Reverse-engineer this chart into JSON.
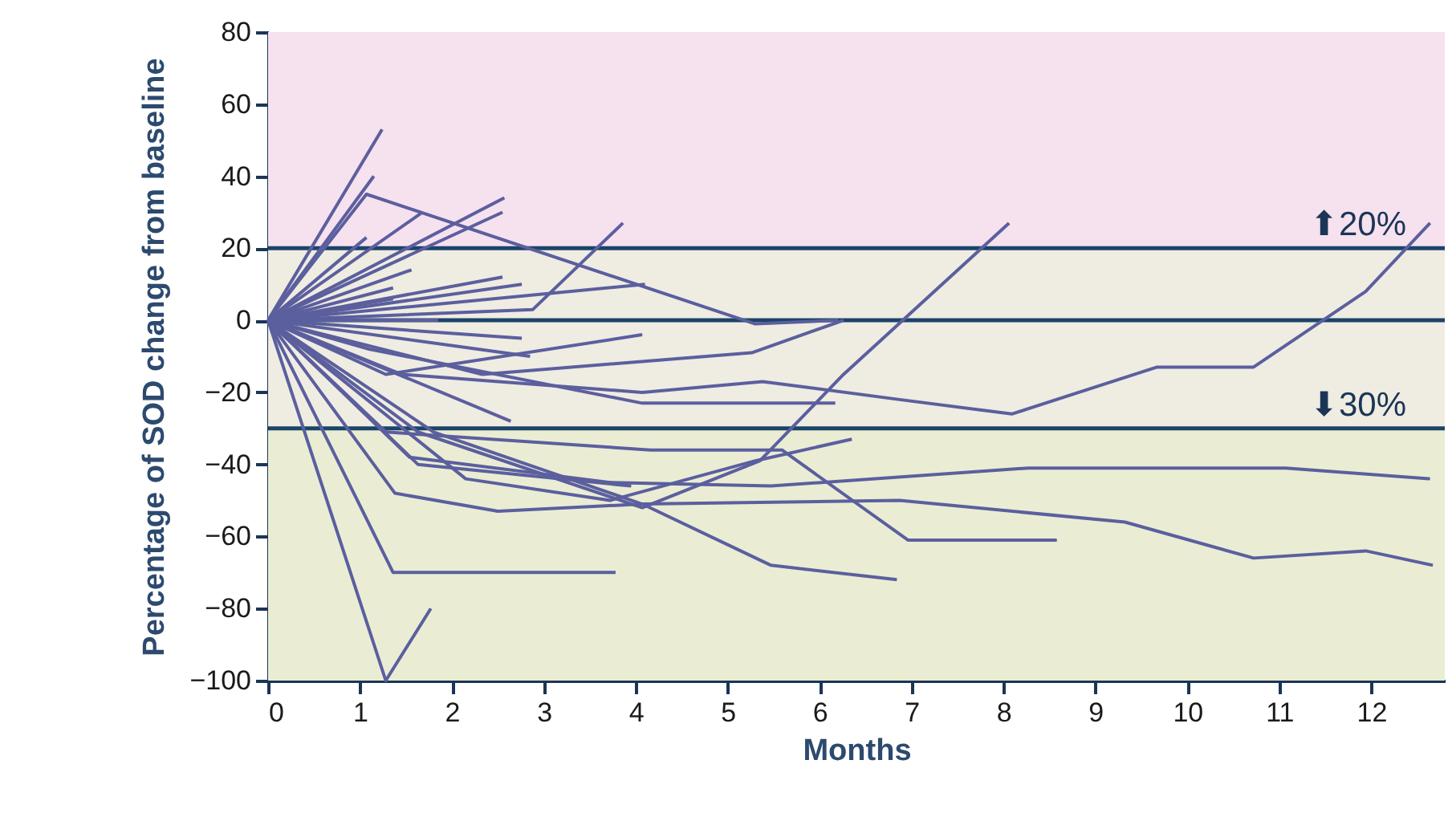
{
  "chart_data": {
    "type": "line",
    "xlabel": "Months",
    "ylabel": "Percentage of SOD change from baseline",
    "xlim": [
      0,
      12.8
    ],
    "xticks": [
      0,
      1,
      2,
      3,
      4,
      5,
      6,
      7,
      8,
      9,
      10,
      11,
      12
    ],
    "ylim": [
      -100,
      80
    ],
    "yticks": [
      -100,
      -80,
      -60,
      -40,
      -20,
      0,
      20,
      40,
      60,
      80
    ],
    "grid": false,
    "marker": "none",
    "line_style": "solid",
    "bands": [
      {
        "axis": "y",
        "from": 20,
        "to": 80,
        "color": "#f6e1ef"
      },
      {
        "axis": "y",
        "from": -30,
        "to": 20,
        "color": "#efece2"
      },
      {
        "axis": "y",
        "from": -100,
        "to": -30,
        "color": "#eaedd4"
      }
    ],
    "ref_lines": [
      {
        "axis": "y",
        "value": 20,
        "label": "⬆20%",
        "color": "#1b4469"
      },
      {
        "axis": "y",
        "value": 0,
        "color": "#1b4469"
      },
      {
        "axis": "y",
        "value": -30,
        "label": "⬇30%",
        "color": "#1b4469"
      }
    ],
    "series": [
      {
        "color": "#5b5f9e",
        "x": [
          0,
          1.24
        ],
        "values": [
          0,
          53
        ]
      },
      {
        "color": "#5b5f9e",
        "x": [
          0,
          1.15
        ],
        "values": [
          0,
          40
        ]
      },
      {
        "color": "#5b5f9e",
        "x": [
          0,
          1.07,
          5.3,
          6.2
        ],
        "values": [
          0,
          35,
          -1,
          0
        ]
      },
      {
        "color": "#5b5f9e",
        "x": [
          0,
          2.57
        ],
        "values": [
          0,
          34
        ]
      },
      {
        "color": "#5b5f9e",
        "x": [
          0,
          2.55
        ],
        "values": [
          0,
          30
        ]
      },
      {
        "color": "#5b5f9e",
        "x": [
          0,
          1.68
        ],
        "values": [
          0,
          30
        ]
      },
      {
        "color": "#5b5f9e",
        "x": [
          0,
          1.07
        ],
        "values": [
          0,
          23
        ]
      },
      {
        "color": "#5b5f9e",
        "x": [
          0,
          2.88,
          3.86
        ],
        "values": [
          0,
          3,
          27
        ]
      },
      {
        "color": "#5b5f9e",
        "x": [
          0,
          4.1
        ],
        "values": [
          0,
          10
        ]
      },
      {
        "color": "#5b5f9e",
        "x": [
          0,
          2.55
        ],
        "values": [
          0,
          12
        ]
      },
      {
        "color": "#5b5f9e",
        "x": [
          0,
          2.76
        ],
        "values": [
          0,
          10
        ]
      },
      {
        "color": "#5b5f9e",
        "x": [
          0,
          1.56
        ],
        "values": [
          0,
          14
        ]
      },
      {
        "color": "#5b5f9e",
        "x": [
          0,
          1.36
        ],
        "values": [
          0,
          9
        ]
      },
      {
        "color": "#5b5f9e",
        "x": [
          0,
          1.36
        ],
        "values": [
          0,
          6
        ]
      },
      {
        "color": "#5b5f9e",
        "x": [
          0,
          1.85
        ],
        "values": [
          0,
          0
        ]
      },
      {
        "color": "#5b5f9e",
        "x": [
          0,
          2.76
        ],
        "values": [
          0,
          -5
        ]
      },
      {
        "color": "#5b5f9e",
        "x": [
          0,
          2.85
        ],
        "values": [
          0,
          -10
        ]
      },
      {
        "color": "#5b5f9e",
        "x": [
          0,
          1.28,
          4.07
        ],
        "values": [
          0,
          -15,
          -4
        ]
      },
      {
        "color": "#5b5f9e",
        "x": [
          0,
          2.64
        ],
        "values": [
          0,
          -28
        ]
      },
      {
        "color": "#5b5f9e",
        "x": [
          0,
          1.45,
          4.07,
          5.38,
          6.87,
          8.09,
          9.67,
          10.72,
          11.94,
          12.64
        ],
        "values": [
          0,
          -15,
          -20,
          -17,
          -22,
          -26,
          -13,
          -13,
          8,
          27
        ]
      },
      {
        "color": "#5b5f9e",
        "x": [
          0,
          1.1,
          4.07,
          6.17
        ],
        "values": [
          0,
          -8,
          -23,
          -23
        ]
      },
      {
        "color": "#5b5f9e",
        "x": [
          0,
          2.33,
          5.26,
          6.26
        ],
        "values": [
          0,
          -15,
          -9,
          0
        ]
      },
      {
        "color": "#5b5f9e",
        "x": [
          0,
          1.36,
          3.78
        ],
        "values": [
          0,
          -70,
          -70
        ]
      },
      {
        "color": "#5b5f9e",
        "x": [
          0,
          1.28,
          1.77
        ],
        "values": [
          0,
          -100,
          -80
        ]
      },
      {
        "color": "#5b5f9e",
        "x": [
          0,
          1.38,
          2.5,
          4.07,
          6.87,
          9.32,
          10.72,
          11.94,
          12.67
        ],
        "values": [
          0,
          -48,
          -53,
          -51,
          -50,
          -56,
          -66,
          -64,
          -68
        ]
      },
      {
        "color": "#5b5f9e",
        "x": [
          0,
          1.54,
          3.72,
          5.47,
          8.27,
          10.02,
          11.07,
          12.64
        ],
        "values": [
          0,
          -38,
          -45,
          -46,
          -41,
          -41,
          -41,
          -44
        ]
      },
      {
        "color": "#5b5f9e",
        "x": [
          0,
          1.28,
          4.16,
          5.59,
          6.96,
          8.58
        ],
        "values": [
          0,
          -31,
          -36,
          -36,
          -61,
          -61
        ]
      },
      {
        "color": "#5b5f9e",
        "x": [
          0,
          1.8,
          4.07,
          5.47,
          6.84
        ],
        "values": [
          0,
          -31,
          -51,
          -68,
          -72
        ]
      },
      {
        "color": "#5b5f9e",
        "x": [
          0,
          2.15,
          3.72,
          5.3,
          6.35
        ],
        "values": [
          0,
          -44,
          -50,
          -39,
          -33
        ]
      },
      {
        "color": "#5b5f9e",
        "x": [
          0,
          1.63,
          4.07,
          5.35,
          6.26,
          8.06
        ],
        "values": [
          0,
          -31,
          -52,
          -39,
          -15,
          27
        ]
      },
      {
        "color": "#5b5f9e",
        "x": [
          0,
          1.63,
          3.95
        ],
        "values": [
          0,
          -40,
          -46
        ]
      }
    ]
  }
}
